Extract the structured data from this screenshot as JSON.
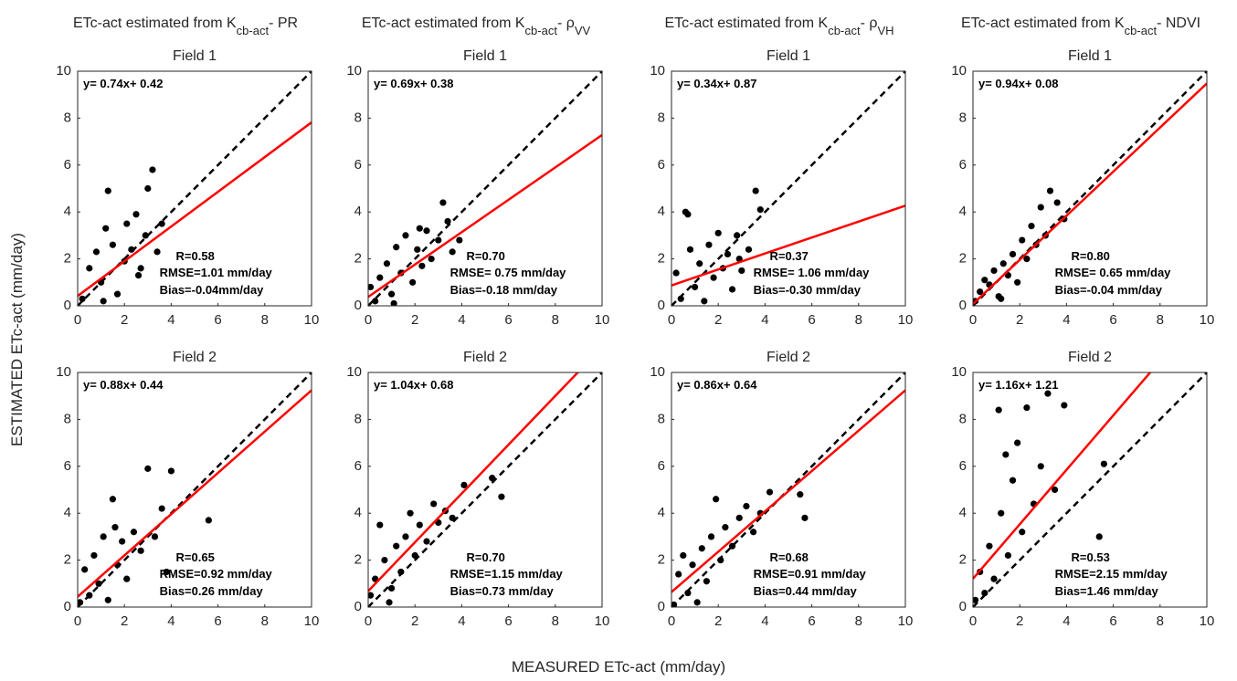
{
  "figure": {
    "column_titles": [
      [
        {
          "text": "ETc-act estimated from K"
        },
        {
          "sub": "cb-act"
        },
        {
          "text": "- PR"
        }
      ],
      [
        {
          "text": "ETc-act estimated from K"
        },
        {
          "sub": "cb-act"
        },
        {
          "text": "- ρ"
        },
        {
          "sub": "VV"
        }
      ],
      [
        {
          "text": "ETc-act estimated from K"
        },
        {
          "sub": "cb-act"
        },
        {
          "text": "- ρ"
        },
        {
          "sub": "VH"
        }
      ],
      [
        {
          "text": "ETc-act estimated from K"
        },
        {
          "sub": "cb-act"
        },
        {
          "text": "- NDVI"
        }
      ]
    ],
    "x_label": "MEASURED ETc-act (mm/day)",
    "y_label": "ESTIMATED ETc-act (mm/day)"
  },
  "chart_data": [
    {
      "type": "scatter",
      "title": "Field 1",
      "color": "#000000",
      "x": [
        0.2,
        0.5,
        0.8,
        1.0,
        1.2,
        1.3,
        1.5,
        1.7,
        2.0,
        2.1,
        2.3,
        2.5,
        2.7,
        2.9,
        3.0,
        3.2,
        3.4,
        3.6,
        1.1,
        2.6
      ],
      "y": [
        0.3,
        1.6,
        2.3,
        1.0,
        3.3,
        4.9,
        2.6,
        0.5,
        1.9,
        3.5,
        2.4,
        3.9,
        1.6,
        3.0,
        5.0,
        5.8,
        2.3,
        3.5,
        0.2,
        1.3
      ],
      "xlim": [
        0,
        10
      ],
      "ylim": [
        0,
        10
      ],
      "xticks": [
        0,
        2,
        4,
        6,
        8,
        10
      ],
      "yticks": [
        0,
        2,
        4,
        6,
        8,
        10
      ],
      "fit": {
        "slope": 0.74,
        "intercept": 0.42,
        "color": "#ff0000",
        "label": "y= 0.74x+ 0.42"
      },
      "annotations": [
        "R=0.58",
        "RMSE=1.01 mm/day",
        "Bias=-0.04mm/day"
      ]
    },
    {
      "type": "scatter",
      "title": "Field 1",
      "color": "#000000",
      "x": [
        0.1,
        0.3,
        0.5,
        0.8,
        1.0,
        1.2,
        1.4,
        1.6,
        1.9,
        2.1,
        2.3,
        2.5,
        2.7,
        3.0,
        3.2,
        3.4,
        3.6,
        3.9,
        1.1,
        2.2
      ],
      "y": [
        0.8,
        0.2,
        1.2,
        1.8,
        0.5,
        2.5,
        1.4,
        3.0,
        1.0,
        2.4,
        1.7,
        3.2,
        2.0,
        2.8,
        4.4,
        3.6,
        2.3,
        2.8,
        0.1,
        3.3
      ],
      "xlim": [
        0,
        10
      ],
      "ylim": [
        0,
        10
      ],
      "xticks": [
        0,
        2,
        4,
        6,
        8,
        10
      ],
      "yticks": [
        0,
        2,
        4,
        6,
        8,
        10
      ],
      "fit": {
        "slope": 0.69,
        "intercept": 0.38,
        "color": "#ff0000",
        "label": "y= 0.69x+ 0.38"
      },
      "annotations": [
        "R=0.70",
        "RMSE= 0.75 mm/day",
        "Bias=-0.18 mm/day"
      ]
    },
    {
      "type": "scatter",
      "title": "Field 1",
      "color": "#000000",
      "x": [
        0.2,
        0.4,
        0.6,
        0.8,
        1.0,
        1.2,
        1.4,
        1.6,
        1.8,
        2.0,
        2.2,
        2.4,
        2.6,
        2.8,
        3.0,
        3.3,
        3.6,
        3.8,
        0.7,
        2.9
      ],
      "y": [
        1.4,
        0.3,
        4.0,
        2.4,
        0.8,
        1.8,
        0.2,
        2.6,
        1.2,
        3.1,
        1.6,
        2.2,
        0.7,
        3.0,
        1.5,
        2.4,
        4.9,
        4.1,
        3.9,
        2.0
      ],
      "xlim": [
        0,
        10
      ],
      "ylim": [
        0,
        10
      ],
      "xticks": [
        0,
        2,
        4,
        6,
        8,
        10
      ],
      "yticks": [
        0,
        2,
        4,
        6,
        8,
        10
      ],
      "fit": {
        "slope": 0.34,
        "intercept": 0.87,
        "color": "#ff0000",
        "label": "y= 0.34x+ 0.87"
      },
      "annotations": [
        "R=0.37",
        "RMSE= 1.06 mm/day",
        "Bias=-0.30 mm/day"
      ]
    },
    {
      "type": "scatter",
      "title": "Field 1",
      "color": "#000000",
      "x": [
        0.1,
        0.3,
        0.5,
        0.7,
        0.9,
        1.1,
        1.3,
        1.5,
        1.7,
        1.9,
        2.1,
        2.3,
        2.5,
        2.7,
        2.9,
        3.1,
        3.3,
        3.6,
        3.9,
        1.2
      ],
      "y": [
        0.2,
        0.6,
        1.1,
        0.9,
        1.5,
        0.4,
        1.8,
        1.3,
        2.2,
        1.0,
        2.8,
        2.0,
        3.4,
        2.6,
        4.2,
        3.0,
        4.9,
        4.4,
        3.7,
        0.3
      ],
      "xlim": [
        0,
        10
      ],
      "ylim": [
        0,
        10
      ],
      "xticks": [
        0,
        2,
        4,
        6,
        8,
        10
      ],
      "yticks": [
        0,
        2,
        4,
        6,
        8,
        10
      ],
      "fit": {
        "slope": 0.94,
        "intercept": 0.08,
        "color": "#ff0000",
        "label": "y= 0.94x+ 0.08"
      },
      "annotations": [
        "R=0.80",
        "RMSE= 0.65 mm/day",
        "Bias=-0.04 mm/day"
      ]
    },
    {
      "type": "scatter",
      "title": "Field 2",
      "color": "#000000",
      "x": [
        0.1,
        0.3,
        0.5,
        0.7,
        0.9,
        1.1,
        1.3,
        1.5,
        1.7,
        1.9,
        2.1,
        2.4,
        2.7,
        3.0,
        3.3,
        3.6,
        4.0,
        5.6,
        3.8,
        1.6
      ],
      "y": [
        0.2,
        1.6,
        0.5,
        2.2,
        1.0,
        3.0,
        0.3,
        4.6,
        1.8,
        2.8,
        1.2,
        3.2,
        2.4,
        5.9,
        3.0,
        4.2,
        5.8,
        3.7,
        1.5,
        3.4
      ],
      "xlim": [
        0,
        10
      ],
      "ylim": [
        0,
        10
      ],
      "xticks": [
        0,
        2,
        4,
        6,
        8,
        10
      ],
      "yticks": [
        0,
        2,
        4,
        6,
        8,
        10
      ],
      "fit": {
        "slope": 0.88,
        "intercept": 0.44,
        "color": "#ff0000",
        "label": "y= 0.88x+ 0.44"
      },
      "annotations": [
        "R=0.65",
        "RMSE=0.92 mm/day",
        "Bias=0.26 mm/day"
      ]
    },
    {
      "type": "scatter",
      "title": "Field 2",
      "color": "#000000",
      "x": [
        0.1,
        0.3,
        0.5,
        0.7,
        0.9,
        1.0,
        1.2,
        1.4,
        1.6,
        1.8,
        2.0,
        2.2,
        2.5,
        2.8,
        3.0,
        3.3,
        3.6,
        4.1,
        5.3,
        5.7
      ],
      "y": [
        0.5,
        1.2,
        3.5,
        2.0,
        0.2,
        0.8,
        2.6,
        1.5,
        3.0,
        4.0,
        2.2,
        3.5,
        2.8,
        4.4,
        3.6,
        4.1,
        3.8,
        5.2,
        5.5,
        4.7
      ],
      "xlim": [
        0,
        10
      ],
      "ylim": [
        0,
        10
      ],
      "xticks": [
        0,
        2,
        4,
        6,
        8,
        10
      ],
      "yticks": [
        0,
        2,
        4,
        6,
        8,
        10
      ],
      "fit": {
        "slope": 1.04,
        "intercept": 0.68,
        "color": "#ff0000",
        "label": "y= 1.04x+ 0.68"
      },
      "annotations": [
        "R=0.70",
        "RMSE=1.15 mm/day",
        "Bias=0.73 mm/day"
      ]
    },
    {
      "type": "scatter",
      "title": "Field 2",
      "color": "#000000",
      "x": [
        0.1,
        0.3,
        0.5,
        0.7,
        0.9,
        1.1,
        1.3,
        1.5,
        1.7,
        1.9,
        2.1,
        2.3,
        2.6,
        2.9,
        3.2,
        3.5,
        3.8,
        4.2,
        5.5,
        5.7
      ],
      "y": [
        0.1,
        1.4,
        2.2,
        0.6,
        1.8,
        0.2,
        2.5,
        1.1,
        3.0,
        4.6,
        2.0,
        3.4,
        2.6,
        3.8,
        4.3,
        3.2,
        4.0,
        4.9,
        4.8,
        3.8
      ],
      "xlim": [
        0,
        10
      ],
      "ylim": [
        0,
        10
      ],
      "xticks": [
        0,
        2,
        4,
        6,
        8,
        10
      ],
      "yticks": [
        0,
        2,
        4,
        6,
        8,
        10
      ],
      "fit": {
        "slope": 0.86,
        "intercept": 0.64,
        "color": "#ff0000",
        "label": "y= 0.86x+ 0.64"
      },
      "annotations": [
        "R=0.68",
        "RMSE=0.91 mm/day",
        "Bias=0.44 mm/day"
      ]
    },
    {
      "type": "scatter",
      "title": "Field 2",
      "color": "#000000",
      "x": [
        0.1,
        0.3,
        0.5,
        0.7,
        0.9,
        1.1,
        1.2,
        1.4,
        1.5,
        1.7,
        1.9,
        2.1,
        2.3,
        2.6,
        2.9,
        3.2,
        3.5,
        3.9,
        5.4,
        5.6
      ],
      "y": [
        0.3,
        1.5,
        0.6,
        2.6,
        1.2,
        8.4,
        4.0,
        6.5,
        2.2,
        5.4,
        7.0,
        3.2,
        8.5,
        4.4,
        6.0,
        9.1,
        5.0,
        8.6,
        3.0,
        6.1
      ],
      "xlim": [
        0,
        10
      ],
      "ylim": [
        0,
        10
      ],
      "xticks": [
        0,
        2,
        4,
        6,
        8,
        10
      ],
      "yticks": [
        0,
        2,
        4,
        6,
        8,
        10
      ],
      "fit": {
        "slope": 1.16,
        "intercept": 1.21,
        "color": "#ff0000",
        "label": "y= 1.16x+ 1.21"
      },
      "annotations": [
        "R=0.53",
        "RMSE=2.15 mm/day",
        "Bias=1.46 mm/day"
      ]
    }
  ]
}
